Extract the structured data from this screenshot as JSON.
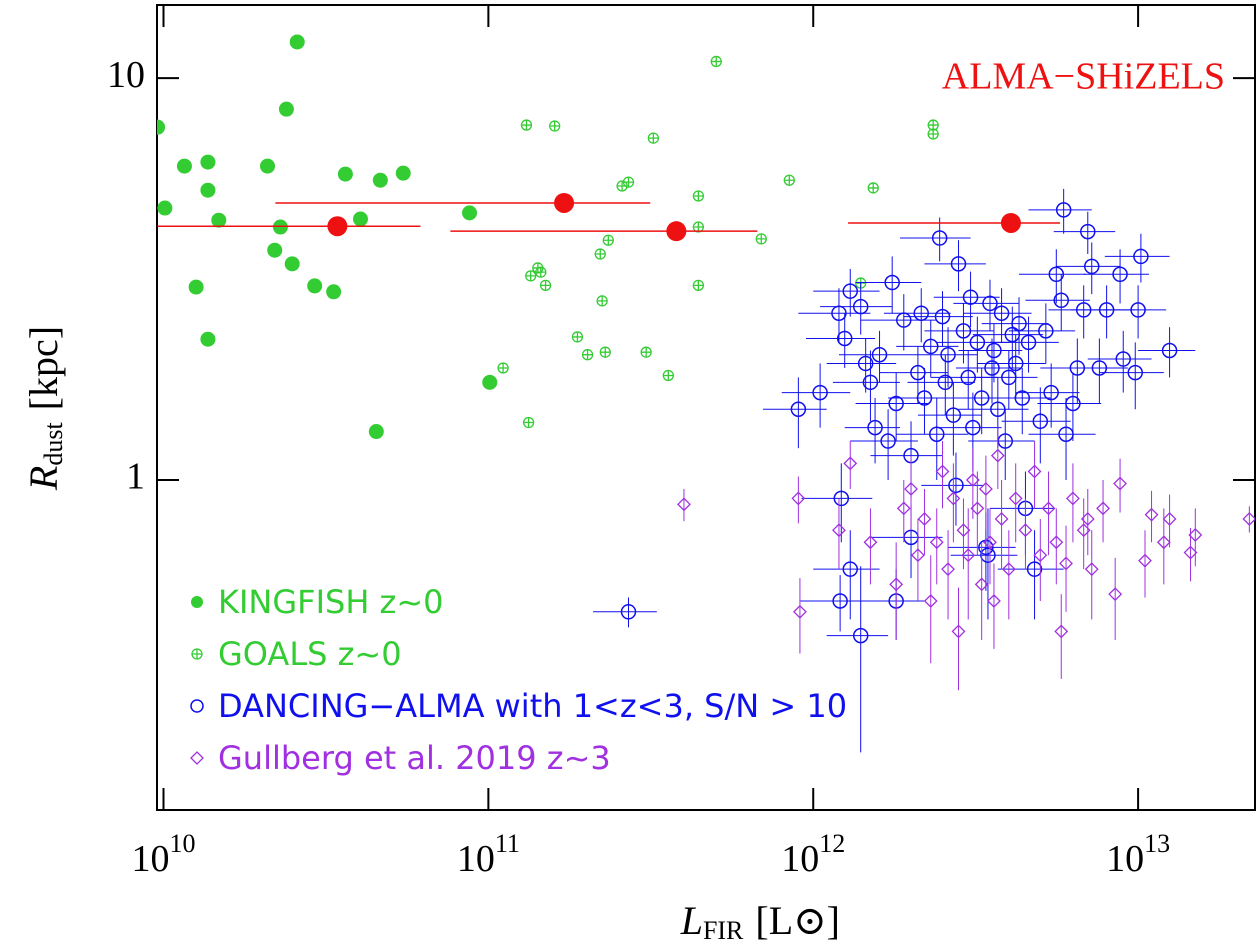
{
  "chart_data": {
    "type": "scatter",
    "annotation": "ALMA−SHiZELS",
    "annotation_color": "#ee1111",
    "xlabel": {
      "symbol": "L",
      "subscript": "FIR",
      "unit": "[L⊙]"
    },
    "ylabel": {
      "symbol": "R",
      "subscript": "dust",
      "unit": "[kpc]"
    },
    "xlog": true,
    "ylog": true,
    "xlim": [
      9550000000.0,
      22900000000000.0
    ],
    "ylim": [
      0.151,
      15.2
    ],
    "xticks": [
      {
        "value": 10000000000.0,
        "label": "10^10"
      },
      {
        "value": 100000000000.0,
        "label": "10^11"
      },
      {
        "value": 1000000000000.0,
        "label": "10^12"
      },
      {
        "value": 10000000000000.0,
        "label": "10^13"
      }
    ],
    "yticks": [
      1,
      10
    ],
    "legend": "lower left",
    "series": [
      {
        "name": "KINGFISH z~0",
        "color": "#33cc33",
        "marker": "filled-circle",
        "x": [
          9590000000.0,
          10100000000.0,
          11600000000.0,
          13700000000.0,
          13700000000.0,
          14800000000.0,
          12600000000.0,
          13700000000.0,
          20900000000.0,
          22000000000.0,
          22900000000.0,
          23900000000.0,
          24900000000.0,
          25800000000.0,
          29200000000.0,
          33400000000.0,
          36300000000.0,
          40400000000.0,
          46500000000.0,
          54700000000.0,
          45200000000.0,
          87500000000.0,
          101000000000.0
        ],
        "values": [
          7.55,
          4.75,
          6.04,
          6.18,
          5.26,
          4.43,
          3.02,
          2.24,
          6.04,
          3.73,
          4.26,
          8.37,
          3.45,
          12.3,
          3.04,
          2.94,
          5.77,
          4.46,
          5.57,
          5.8,
          1.32,
          4.62,
          1.75
        ]
      },
      {
        "name": "GOALS z~0",
        "color": "#33cc33",
        "marker": "circle-plus",
        "x": [
          131000000000.0,
          160000000000.0,
          322000000000.0,
          503000000000.0,
          258000000000.0,
          270000000000.0,
          443000000000.0,
          844000000000.0,
          1530000000000.0,
          2340000000000.0,
          2340000000000.0,
          443000000000.0,
          692000000000.0,
          234000000000.0,
          221000000000.0,
          135000000000.0,
          142000000000.0,
          145000000000.0,
          150000000000.0,
          443000000000.0,
          224000000000.0,
          188000000000.0,
          202000000000.0,
          229000000000.0,
          306000000000.0,
          358000000000.0,
          111000000000.0,
          133000000000.0,
          1400000000000.0
        ],
        "values": [
          7.64,
          7.6,
          7.09,
          11.0,
          5.39,
          5.51,
          5.09,
          5.57,
          5.33,
          7.64,
          7.26,
          4.26,
          3.98,
          3.95,
          3.65,
          3.22,
          3.37,
          3.29,
          3.05,
          3.05,
          2.79,
          2.27,
          2.05,
          2.08,
          2.08,
          1.82,
          1.9,
          1.39,
          3.09
        ]
      },
      {
        "name": "DANCING−ALMA with 1<z<3, S/N > 10",
        "color": "#1010ee",
        "marker": "open-circle",
        "x": [
          1200000000000.0,
          1250000000000.0,
          1300000000000.0,
          1400000000000.0,
          1450000000000.0,
          1500000000000.0,
          1550000000000.0,
          1600000000000.0,
          1700000000000.0,
          1750000000000.0,
          1800000000000.0,
          1900000000000.0,
          2000000000000.0,
          2100000000000.0,
          2150000000000.0,
          2200000000000.0,
          2300000000000.0,
          2400000000000.0,
          2450000000000.0,
          2500000000000.0,
          2550000000000.0,
          2600000000000.0,
          2700000000000.0,
          2750000000000.0,
          2800000000000.0,
          2900000000000.0,
          3000000000000.0,
          3050000000000.0,
          3100000000000.0,
          3200000000000.0,
          3300000000000.0,
          3400000000000.0,
          3500000000000.0,
          3550000000000.0,
          3600000000000.0,
          3700000000000.0,
          3800000000000.0,
          3900000000000.0,
          4000000000000.0,
          4100000000000.0,
          4200000000000.0,
          4300000000000.0,
          4400000000000.0,
          4500000000000.0,
          4600000000000.0,
          4800000000000.0,
          5000000000000.0,
          5200000000000.0,
          5400000000000.0,
          5600000000000.0,
          5800000000000.0,
          5900000000000.0,
          6000000000000.0,
          6300000000000.0,
          6500000000000.0,
          6800000000000.0,
          7000000000000.0,
          7200000000000.0,
          7600000000000.0,
          8000000000000.0,
          8800000000000.0,
          9000000000000.0,
          9800000000000.0,
          10000000000000.0,
          10200000000000.0,
          12500000000000.0,
          270000000000.0,
          1210000000000.0,
          1400000000000.0,
          1800000000000.0,
          900000000000.0,
          1050000000000.0,
          1220000000000.0,
          1300000000000.0,
          3450000000000.0,
          2000000000000.0
        ],
        "values": [
          2.6,
          2.25,
          2.95,
          2.7,
          1.95,
          1.75,
          1.35,
          2.05,
          1.25,
          3.1,
          1.55,
          2.5,
          1.15,
          1.85,
          2.6,
          1.6,
          2.15,
          1.3,
          4.0,
          2.55,
          1.75,
          2.05,
          1.45,
          0.97,
          3.45,
          2.35,
          1.8,
          2.85,
          1.35,
          2.2,
          1.6,
          0.68,
          2.75,
          1.9,
          2.1,
          1.5,
          2.6,
          1.25,
          1.8,
          2.3,
          1.95,
          2.45,
          1.6,
          0.85,
          2.2,
          0.6,
          1.4,
          2.35,
          1.65,
          3.25,
          2.8,
          4.7,
          1.3,
          1.55,
          1.9,
          2.65,
          4.15,
          3.4,
          1.9,
          2.65,
          3.25,
          2.0,
          1.85,
          2.65,
          3.6,
          2.1,
          0.47,
          0.5,
          0.41,
          0.5,
          1.5,
          1.65,
          0.9,
          0.6,
          0.65,
          0.72
        ],
        "xerr": [
          300000000000.0,
          300000000000.0,
          300000000000.0,
          350000000000.0,
          350000000000.0,
          350000000000.0,
          300000000000.0,
          400000000000.0,
          400000000000.0,
          400000000000.0,
          450000000000.0,
          500000000000.0,
          500000000000.0,
          500000000000.0,
          500000000000.0,
          500000000000.0,
          500000000000.0,
          600000000000.0,
          600000000000.0,
          600000000000.0,
          600000000000.0,
          600000000000.0,
          600000000000.0,
          600000000000.0,
          600000000000.0,
          700000000000.0,
          700000000000.0,
          700000000000.0,
          700000000000.0,
          800000000000.0,
          800000000000.0,
          800000000000.0,
          800000000000.0,
          800000000000.0,
          800000000000.0,
          900000000000.0,
          900000000000.0,
          900000000000.0,
          900000000000.0,
          1000000000000.0,
          1000000000000.0,
          1000000000000.0,
          1000000000000.0,
          1000000000000.0,
          1100000000000.0,
          1100000000000.0,
          1200000000000.0,
          1200000000000.0,
          1200000000000.0,
          1300000000000.0,
          1300000000000.0,
          1300000000000.0,
          1400000000000.0,
          1400000000000.0,
          1500000000000.0,
          1500000000000.0,
          1500000000000.0,
          1600000000000.0,
          1700000000000.0,
          1800000000000.0,
          2000000000000.0,
          2000000000000.0,
          2200000000000.0,
          2200000000000.0,
          2300000000000.0,
          2500000000000.0,
          60000000000.0,
          300000000000.0,
          300000000000.0,
          400000000000.0,
          200000000000.0,
          250000000000.0,
          300000000000.0,
          300000000000.0,
          800000000000.0,
          500000000000.0
        ],
        "yerr": [
          0.4,
          0.35,
          0.4,
          0.4,
          0.3,
          0.35,
          0.25,
          0.3,
          0.25,
          0.5,
          0.3,
          0.4,
          0.25,
          0.3,
          0.4,
          0.3,
          0.35,
          0.3,
          0.5,
          0.4,
          0.3,
          0.35,
          0.3,
          0.2,
          0.5,
          0.4,
          0.3,
          0.45,
          0.3,
          0.35,
          0.3,
          0.15,
          0.4,
          0.35,
          0.35,
          0.3,
          0.4,
          0.25,
          0.3,
          0.4,
          0.35,
          0.4,
          0.3,
          0.2,
          0.35,
          0.15,
          0.3,
          0.4,
          0.3,
          0.5,
          0.45,
          0.6,
          0.3,
          0.3,
          0.35,
          0.4,
          0.5,
          0.5,
          0.35,
          0.4,
          0.5,
          0.35,
          0.35,
          0.4,
          0.5,
          0.3,
          0.04,
          0.08,
          0.2,
          0.1,
          0.3,
          0.3,
          0.2,
          0.15,
          0.2,
          0.15
        ]
      },
      {
        "name": "Gullberg et al. 2019 z~3",
        "color": "#a030e0",
        "marker": "open-diamond",
        "x": [
          400000000000.0,
          900000000000.0,
          910000000000.0,
          1200000000000.0,
          1300000000000.0,
          1500000000000.0,
          1800000000000.0,
          1900000000000.0,
          2000000000000.0,
          2100000000000.0,
          2200000000000.0,
          2300000000000.0,
          2400000000000.0,
          2500000000000.0,
          2600000000000.0,
          2700000000000.0,
          2800000000000.0,
          2900000000000.0,
          3000000000000.0,
          3100000000000.0,
          3200000000000.0,
          3300000000000.0,
          3400000000000.0,
          3500000000000.0,
          3600000000000.0,
          3700000000000.0,
          3800000000000.0,
          4000000000000.0,
          4200000000000.0,
          4500000000000.0,
          4800000000000.0,
          5000000000000.0,
          5300000000000.0,
          5600000000000.0,
          6000000000000.0,
          6300000000000.0,
          6800000000000.0,
          7200000000000.0,
          7800000000000.0,
          8500000000000.0,
          8800000000000.0,
          10500000000000.0,
          11000000000000.0,
          12000000000000.0,
          12500000000000.0,
          14500000000000.0,
          15000000000000.0,
          22000000000000.0,
          5800000000000.0,
          7000000000000.0
        ],
        "values": [
          0.87,
          0.9,
          0.47,
          0.75,
          1.1,
          0.7,
          0.55,
          0.85,
          0.95,
          0.65,
          0.8,
          0.5,
          0.7,
          1.05,
          0.6,
          0.9,
          0.42,
          0.75,
          0.65,
          1.0,
          0.85,
          0.55,
          0.95,
          0.7,
          0.5,
          1.15,
          0.8,
          0.6,
          0.9,
          0.75,
          1.05,
          0.65,
          0.85,
          0.7,
          0.62,
          0.9,
          0.75,
          0.6,
          0.85,
          0.52,
          0.98,
          0.63,
          0.82,
          0.7,
          0.8,
          0.66,
          0.73,
          0.8,
          0.42,
          0.8
        ],
        "yerr": [
          0.08,
          0.12,
          0.1,
          0.15,
          0.15,
          0.15,
          0.15,
          0.15,
          0.2,
          0.15,
          0.15,
          0.15,
          0.15,
          0.2,
          0.15,
          0.2,
          0.12,
          0.15,
          0.2,
          0.2,
          0.2,
          0.15,
          0.2,
          0.15,
          0.12,
          0.2,
          0.2,
          0.15,
          0.2,
          0.15,
          0.2,
          0.15,
          0.2,
          0.15,
          0.15,
          0.2,
          0.15,
          0.15,
          0.15,
          0.12,
          0.15,
          0.12,
          0.12,
          0.15,
          0.12,
          0.1,
          0.12,
          0.06,
          0.1,
          0.15
        ]
      },
      {
        "name": "ALMA−SHiZELS",
        "color": "#ee1111",
        "marker": "big-filled-circle",
        "in_legend": false,
        "x": [
          34300000000.0,
          171000000000.0,
          379000000000.0,
          4060000000000.0
        ],
        "values": [
          4.28,
          4.89,
          4.16,
          4.36
        ],
        "x_min": [
          9580000000.0,
          22100000000.0,
          76400000000.0,
          1280000000000.0
        ],
        "x_max": [
          61800000000.0,
          315000000000.0,
          673000000000.0,
          5750000000000.0
        ]
      }
    ]
  }
}
